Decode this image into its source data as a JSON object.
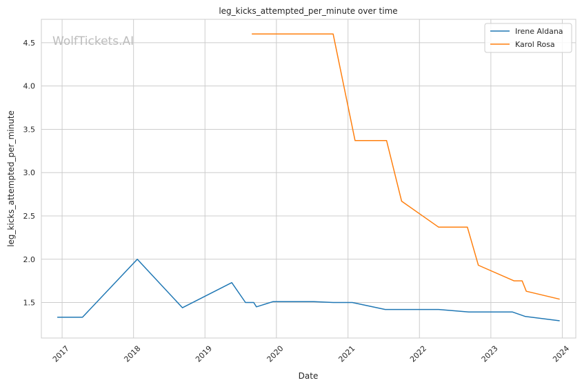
{
  "chart_data": {
    "type": "line",
    "title": "leg_kicks_attempted_per_minute over time",
    "xlabel": "Date",
    "ylabel": "leg_kicks_attempted_per_minute",
    "watermark": "WolfTickets.AI",
    "grid": true,
    "legend_position": "top-right",
    "xlim": [
      "2016-09-17",
      "2024-03-10"
    ],
    "ylim": [
      1.09,
      4.77
    ],
    "x_ticks": [
      "2017-01-01",
      "2018-01-01",
      "2019-01-01",
      "2020-01-01",
      "2021-01-01",
      "2022-01-01",
      "2023-01-01",
      "2024-01-01"
    ],
    "x_tick_labels": [
      "2017",
      "2018",
      "2019",
      "2020",
      "2021",
      "2022",
      "2023",
      "2024"
    ],
    "y_ticks": [
      1.5,
      2.0,
      2.5,
      3.0,
      3.5,
      4.0,
      4.5
    ],
    "y_tick_labels": [
      "1.5",
      "2.0",
      "2.5",
      "3.0",
      "3.5",
      "4.0",
      "4.5"
    ],
    "series": [
      {
        "name": "Irene Aldana",
        "color": "#1f77b4",
        "x": [
          "2016-12-10",
          "2017-04-15",
          "2018-01-20",
          "2018-09-08",
          "2019-05-18",
          "2019-07-27",
          "2019-09-07",
          "2019-09-21",
          "2019-12-14",
          "2020-07-11",
          "2020-10-17",
          "2021-01-23",
          "2021-07-10",
          "2022-04-09",
          "2022-09-10",
          "2023-04-22",
          "2023-06-24",
          "2023-12-16"
        ],
        "y": [
          1.33,
          1.33,
          2.0,
          1.44,
          1.73,
          1.5,
          1.5,
          1.45,
          1.51,
          1.51,
          1.5,
          1.5,
          1.42,
          1.42,
          1.39,
          1.39,
          1.34,
          1.29
        ]
      },
      {
        "name": "Karol Rosa",
        "color": "#ff7f0e",
        "x": [
          "2019-08-31",
          "2020-10-17",
          "2021-02-06",
          "2021-07-17",
          "2021-10-02",
          "2022-04-09",
          "2022-09-03",
          "2022-10-29",
          "2023-04-29",
          "2023-06-10",
          "2023-07-01",
          "2023-12-16"
        ],
        "y": [
          4.6,
          4.6,
          3.37,
          3.37,
          2.67,
          2.37,
          2.37,
          1.93,
          1.75,
          1.75,
          1.63,
          1.54
        ]
      }
    ]
  }
}
